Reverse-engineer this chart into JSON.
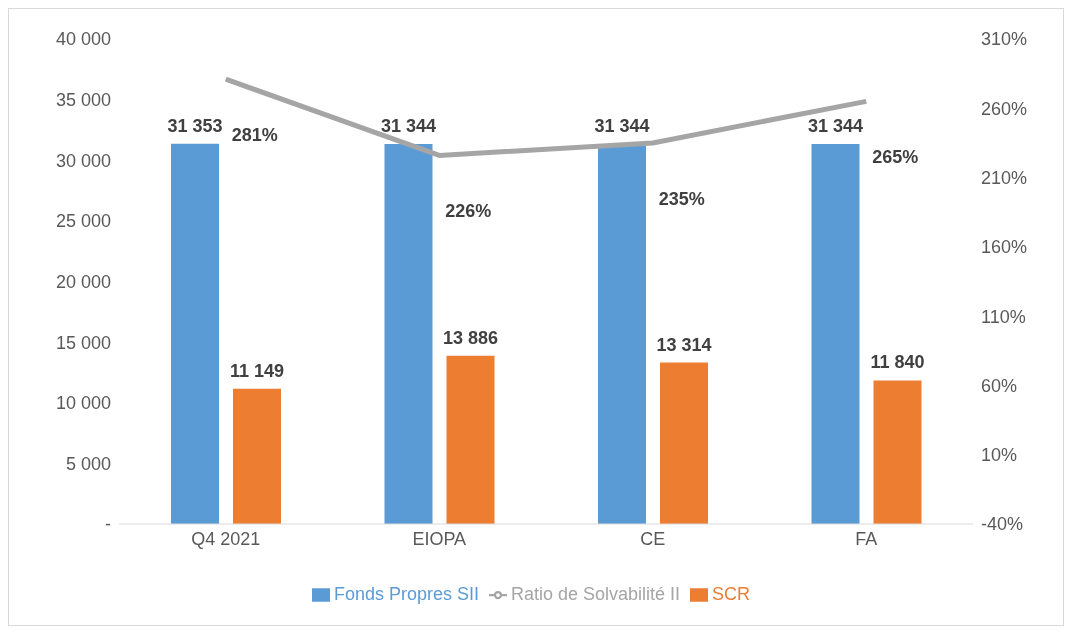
{
  "chart_data": {
    "type": "bar",
    "categories": [
      "Q4 2021",
      "EIOPA",
      "CE",
      "FA"
    ],
    "series": [
      {
        "name": "Fonds Propres SII",
        "color": "#5b9bd5",
        "values": [
          31353,
          31344,
          31344,
          31344
        ],
        "value_labels": [
          "31 353",
          "31 344",
          "31 344",
          "31 344"
        ]
      },
      {
        "name": "SCR",
        "color": "#ed7d31",
        "values": [
          11149,
          13886,
          13314,
          11840
        ],
        "value_labels": [
          "11 149",
          "13 886",
          "13 314",
          "11 840"
        ]
      },
      {
        "name": "Ratio de Solvabilité II",
        "type": "line",
        "axis": "y2",
        "color": "#a5a5a5",
        "values": [
          281,
          226,
          235,
          265
        ],
        "value_labels": [
          "281%",
          "226%",
          "235%",
          "265%"
        ]
      }
    ],
    "ylim": [
      0,
      40000
    ],
    "yticks": [
      {
        "value": 0,
        "label": "-"
      },
      {
        "value": 5000,
        "label": "5 000"
      },
      {
        "value": 10000,
        "label": "10 000"
      },
      {
        "value": 15000,
        "label": "15 000"
      },
      {
        "value": 20000,
        "label": "20 000"
      },
      {
        "value": 25000,
        "label": "25 000"
      },
      {
        "value": 30000,
        "label": "30 000"
      },
      {
        "value": 35000,
        "label": "35 000"
      },
      {
        "value": 40000,
        "label": "40 000"
      }
    ],
    "y2lim": [
      -40,
      310
    ],
    "y2ticks": [
      {
        "value": -40,
        "label": "-40%"
      },
      {
        "value": 10,
        "label": "10%"
      },
      {
        "value": 60,
        "label": "60%"
      },
      {
        "value": 110,
        "label": "110%"
      },
      {
        "value": 160,
        "label": "160%"
      },
      {
        "value": 210,
        "label": "210%"
      },
      {
        "value": 260,
        "label": "260%"
      },
      {
        "value": 310,
        "label": "310%"
      }
    ],
    "legend": "bottom",
    "marker": "none"
  }
}
